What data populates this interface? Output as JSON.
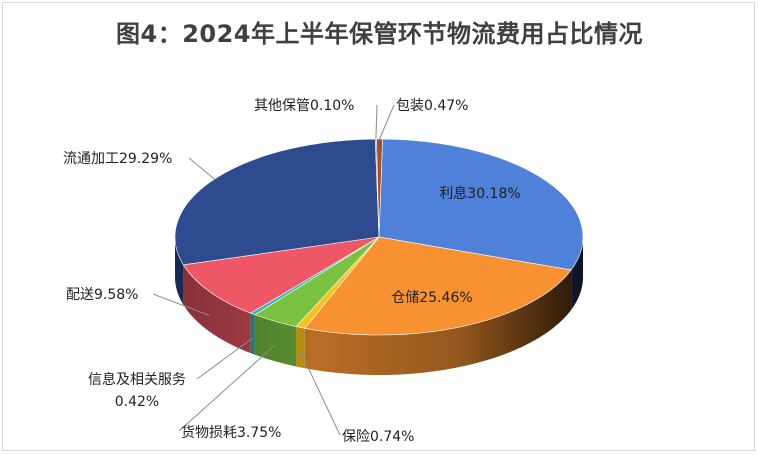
{
  "chart_data": {
    "type": "pie",
    "title": "图4：2024年上半年保管环节物流费用占比情况",
    "series": [
      {
        "name": "利息",
        "value": 30.18,
        "label": "利息30.18%",
        "color": "#4f81d8"
      },
      {
        "name": "仓储",
        "value": 25.46,
        "label": "仓储25.46%",
        "color": "#f79131"
      },
      {
        "name": "保险",
        "value": 0.74,
        "label": "保险0.74%",
        "color": "#f7c21b"
      },
      {
        "name": "货物损耗",
        "value": 3.75,
        "label": "货物损耗3.75%",
        "color": "#7cc242"
      },
      {
        "name": "信息及相关服务",
        "value": 0.42,
        "label": [
          "信息及相关服务",
          "0.42%"
        ],
        "color": "#39b0b8"
      },
      {
        "name": "配送",
        "value": 9.58,
        "label": "配送9.58%",
        "color": "#f05766"
      },
      {
        "name": "流通加工",
        "value": 29.29,
        "label": "流通加工29.29%",
        "color": "#2e4b8f"
      },
      {
        "name": "其他保管",
        "value": 0.1,
        "label": "其他保管0.10%",
        "color": "#8064a2"
      },
      {
        "name": "包装",
        "value": 0.47,
        "label": "包装0.47%",
        "color": "#a0522d"
      }
    ]
  }
}
